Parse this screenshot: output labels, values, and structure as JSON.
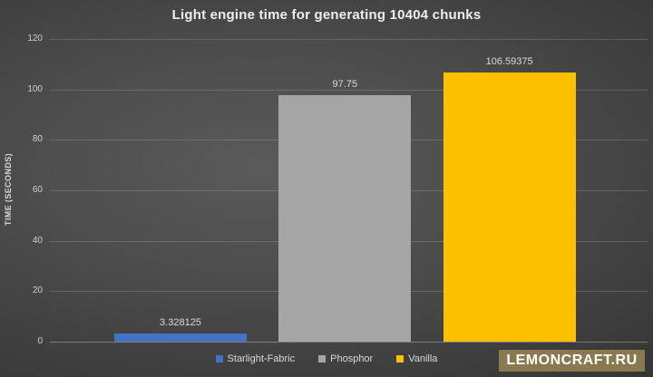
{
  "page": {
    "watermark_text": "LEMONCRAFT.RU",
    "watermark_bg": "#8a7950",
    "background_center": "#5a5a5a",
    "background_edge": "#252525",
    "gridline_color": "rgba(255,255,255,0.16)"
  },
  "chart_data": {
    "type": "bar",
    "title": "Light engine time for generating 10404 chunks",
    "xlabel": "",
    "ylabel": "TIME (SECONDS)",
    "categories": [
      "Starlight-Fabric",
      "Phosphor",
      "Vanilla"
    ],
    "values": [
      3.328125,
      97.75,
      106.59375
    ],
    "value_labels": [
      "3.328125",
      "97.75",
      "106.59375"
    ],
    "bar_colors": [
      "#4472c4",
      "#a5a5a5",
      "#fdc000"
    ],
    "ylim": [
      0,
      120
    ],
    "yticks": [
      0,
      20,
      40,
      60,
      80,
      100,
      120
    ],
    "grid": true,
    "legend_position": "bottom",
    "legend": [
      {
        "label": "Starlight-Fabric",
        "color": "#4472c4"
      },
      {
        "label": "Phosphor",
        "color": "#a5a5a5"
      },
      {
        "label": "Vanilla",
        "color": "#fdc000"
      }
    ]
  }
}
